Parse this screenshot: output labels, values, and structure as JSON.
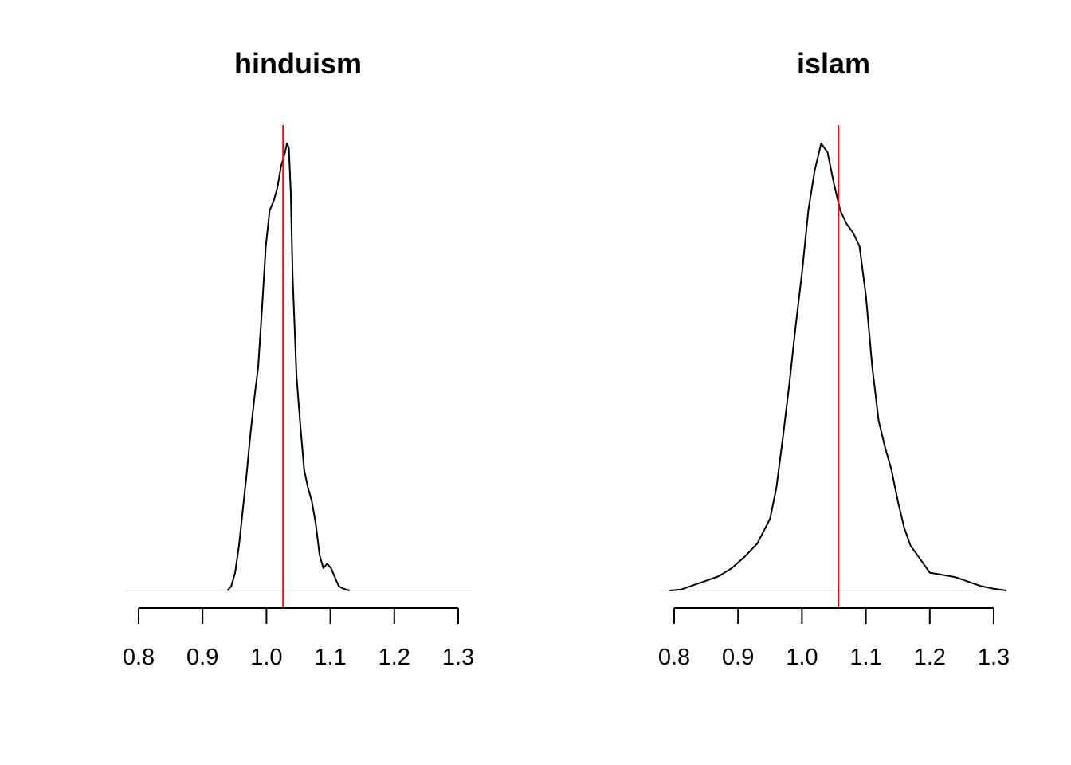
{
  "chart_data": [
    {
      "type": "line",
      "title": "hinduism",
      "xlabel": "",
      "ylabel": "",
      "xlim": [
        0.8,
        1.3
      ],
      "x_ticks": [
        "0.8",
        "0.9",
        "1.0",
        "1.1",
        "1.2",
        "1.3"
      ],
      "y_axis_shown": false,
      "grid": false,
      "curve_color": "#000000",
      "reference_line": {
        "x": 1.026,
        "color": "#ff0000"
      },
      "series": [
        {
          "x": [
            0.939,
            0.945,
            0.951,
            0.957,
            0.963,
            0.969,
            0.975,
            0.981,
            0.987,
            0.993,
            0.999,
            1.005,
            1.011,
            1.017,
            1.023,
            1.029,
            1.032,
            1.035,
            1.038,
            1.041,
            1.047,
            1.053,
            1.059,
            1.065,
            1.071,
            1.077,
            1.083,
            1.089,
            1.095,
            1.101,
            1.107,
            1.113,
            1.119,
            1.125,
            1.13
          ],
          "y": [
            0.0,
            0.01,
            0.04,
            0.1,
            0.18,
            0.26,
            0.35,
            0.43,
            0.5,
            0.63,
            0.77,
            0.85,
            0.87,
            0.9,
            0.95,
            0.98,
            1.0,
            0.99,
            0.89,
            0.7,
            0.48,
            0.37,
            0.27,
            0.23,
            0.2,
            0.15,
            0.08,
            0.05,
            0.06,
            0.05,
            0.03,
            0.01,
            0.005,
            0.002,
            0.0
          ]
        }
      ]
    },
    {
      "type": "line",
      "title": "islam",
      "xlabel": "",
      "ylabel": "",
      "xlim": [
        0.8,
        1.3
      ],
      "x_ticks": [
        "0.8",
        "0.9",
        "1.0",
        "1.1",
        "1.2",
        "1.3"
      ],
      "y_axis_shown": false,
      "grid": false,
      "curve_color": "#000000",
      "reference_line": {
        "x": 1.057,
        "color": "#ff0000"
      },
      "series": [
        {
          "x": [
            0.793,
            0.81,
            0.83,
            0.85,
            0.87,
            0.89,
            0.91,
            0.93,
            0.95,
            0.96,
            0.97,
            0.98,
            0.99,
            1.0,
            1.01,
            1.02,
            1.03,
            1.04,
            1.05,
            1.06,
            1.07,
            1.08,
            1.09,
            1.1,
            1.11,
            1.12,
            1.13,
            1.14,
            1.15,
            1.16,
            1.17,
            1.18,
            1.19,
            1.2,
            1.22,
            1.24,
            1.26,
            1.28,
            1.3,
            1.32
          ],
          "y": [
            0.0,
            0.002,
            0.012,
            0.022,
            0.032,
            0.05,
            0.075,
            0.105,
            0.16,
            0.23,
            0.34,
            0.46,
            0.59,
            0.71,
            0.85,
            0.94,
            1.0,
            0.98,
            0.91,
            0.85,
            0.82,
            0.8,
            0.77,
            0.66,
            0.5,
            0.38,
            0.32,
            0.27,
            0.2,
            0.14,
            0.1,
            0.08,
            0.06,
            0.04,
            0.035,
            0.03,
            0.02,
            0.01,
            0.004,
            0.0
          ]
        }
      ]
    }
  ]
}
